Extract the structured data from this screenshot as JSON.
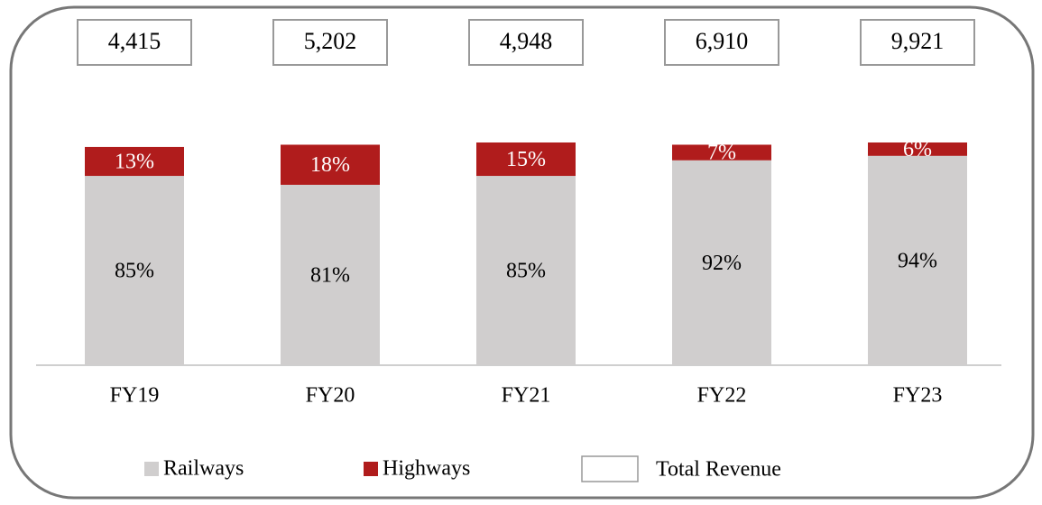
{
  "chart_data": {
    "type": "stacked_bar",
    "categories": [
      "FY19",
      "FY20",
      "FY21",
      "FY22",
      "FY23"
    ],
    "series": [
      {
        "name": "Railways",
        "color": "#d0cece",
        "values": [
          85,
          81,
          85,
          92,
          94
        ],
        "value_labels": [
          "85%",
          "81%",
          "85%",
          "92%",
          "94%"
        ]
      },
      {
        "name": "Highways",
        "color": "#b01c1c",
        "values": [
          13,
          18,
          15,
          7,
          6
        ],
        "value_labels": [
          "13%",
          "18%",
          "15%",
          "7%",
          "6%"
        ]
      }
    ],
    "totals": {
      "name": "Total Revenue",
      "values": [
        4415,
        5202,
        4948,
        6910,
        9921
      ],
      "value_labels": [
        "4,415",
        "5,202",
        "4,948",
        "6,910",
        "9,921"
      ]
    },
    "ylim": [
      0,
      100
    ]
  }
}
